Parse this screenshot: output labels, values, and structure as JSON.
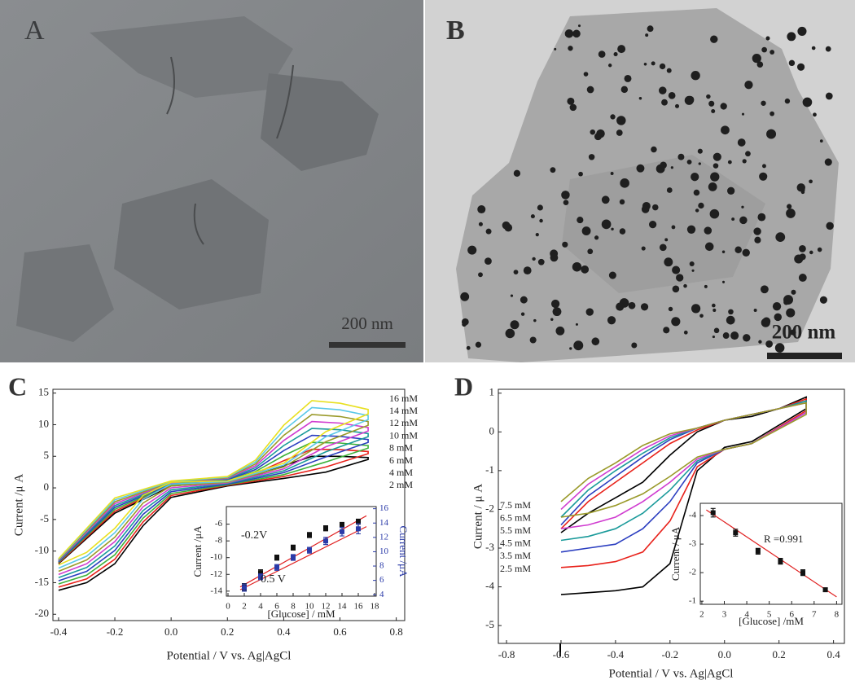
{
  "panels": {
    "a": {
      "label": "A",
      "scale_bar": "200 nm"
    },
    "b": {
      "label": "B",
      "scale_bar": "200 nm"
    }
  },
  "chart_data": [
    {
      "type": "line",
      "panel_label": "C",
      "x_label": "Potential / V vs. Ag|AgCl",
      "y_label": "Current /μ A",
      "x": [
        -0.4,
        -0.3,
        -0.2,
        -0.1,
        0,
        0.2,
        0.4,
        0.55,
        0.7,
        0.7,
        0.6,
        0.5,
        0.4,
        0.3,
        0.2,
        0,
        -0.2,
        -0.4
      ],
      "xlim": [
        -0.42,
        0.83
      ],
      "xticks": [
        -0.4,
        -0.2,
        {
          "value": 0,
          "label": "0.0"
        },
        0.2,
        0.4,
        0.6,
        0.8
      ],
      "ylim": [
        -21,
        15.6
      ],
      "yticks": [
        15,
        10,
        5,
        0,
        -5,
        -10,
        -15,
        -20
      ],
      "series": [
        {
          "color": "#000000",
          "values": [
            -16.2,
            -15,
            -12,
            -6,
            -1.5,
            0.3,
            1.5,
            2.5,
            4.5,
            4.8,
            5,
            5,
            3.5,
            2,
            1,
            0.3,
            -4,
            -12
          ]
        },
        {
          "color": "#e8221b",
          "values": [
            -15.7,
            -14.4,
            -11.3,
            -5.4,
            -1.2,
            0.4,
            1.8,
            3.3,
            5.4,
            5.75,
            6.05,
            6.1,
            4.3,
            2.3,
            1.1,
            0.4,
            -3.7,
            -11.9
          ]
        },
        {
          "color": "#3db23a",
          "values": [
            -15.2,
            -13.8,
            -10.6,
            -4.8,
            -0.9,
            0.5,
            2.1,
            4.1,
            6.3,
            6.7,
            7.1,
            7.2,
            5.1,
            2.6,
            1.2,
            0.5,
            -3.4,
            -11.8
          ]
        },
        {
          "color": "#2b3ec0",
          "values": [
            -14.7,
            -13.2,
            -9.9,
            -4.2,
            -0.6,
            0.6,
            2.4,
            4.9,
            7.2,
            7.65,
            8.15,
            8.3,
            5.9,
            2.9,
            1.3,
            0.6,
            -3.1,
            -11.7
          ]
        },
        {
          "color": "#1a9a9a",
          "values": [
            -14.2,
            -12.6,
            -9.2,
            -3.6,
            -0.3,
            0.7,
            2.7,
            5.7,
            8.1,
            8.6,
            9.2,
            9.4,
            6.7,
            3.2,
            1.4,
            0.7,
            -2.8,
            -11.6
          ]
        },
        {
          "color": "#d03cd0",
          "values": [
            -13.7,
            -12,
            -8.5,
            -3,
            0,
            0.8,
            3,
            6.5,
            9,
            9.55,
            10.25,
            10.5,
            7.5,
            3.5,
            1.5,
            0.8,
            -2.5,
            -11.5
          ]
        },
        {
          "color": "#9a9a2a",
          "values": [
            -13.2,
            -11.4,
            -7.8,
            -2.4,
            0.3,
            0.9,
            3.3,
            7.3,
            9.9,
            10.5,
            11.3,
            11.6,
            8.3,
            3.8,
            1.6,
            0.9,
            -2.2,
            -11.4
          ]
        },
        {
          "color": "#5ac8e8",
          "values": [
            -12.7,
            -10.8,
            -7.1,
            -1.8,
            0.6,
            1,
            3.6,
            8.1,
            10.8,
            11.45,
            12.35,
            12.7,
            9.1,
            4.1,
            1.7,
            1,
            -1.9,
            -11.3
          ]
        },
        {
          "color": "#e8e020",
          "values": [
            -12.2,
            -10.2,
            -6.4,
            -1.2,
            0.9,
            1.1,
            3.9,
            8.9,
            11.7,
            12.4,
            13.4,
            13.8,
            9.9,
            4.4,
            1.8,
            1.1,
            -1.6,
            -11.2
          ]
        }
      ],
      "annotations": [
        "16 mM",
        "14 mM",
        "12 mM",
        "10 mM",
        "8  mM",
        "6  mM",
        "4  mM",
        "2  mM"
      ]
    },
    {
      "type": "scatter",
      "x_label": "[Glucose] / mM",
      "y_label": "Current /μA",
      "y2_label": "Current /μA",
      "xlim": [
        -0.2,
        18.2
      ],
      "xticks": [
        0,
        2,
        4,
        6,
        8,
        10,
        12,
        14,
        16,
        18
      ],
      "ylim": [
        -14.6,
        -3.9
      ],
      "yticks": [
        -6,
        -8,
        -10,
        -12,
        -14
      ],
      "y2lim": [
        3.8,
        16.3
      ],
      "y2ticks": [
        4,
        6,
        8,
        10,
        12,
        14,
        16
      ],
      "series": [
        {
          "name": "-0.2V",
          "color": "#111111",
          "x": [
            2,
            4,
            6,
            8,
            10,
            12,
            14,
            16
          ],
          "values": [
            -13.5,
            -11.8,
            -10,
            -8.8,
            -7.3,
            -6.5,
            -6.1,
            -5.7
          ],
          "errors": [
            0.4,
            0.35,
            0.3,
            0.3,
            0.3,
            0.3,
            0.3,
            0.3
          ]
        },
        {
          "name": "0.5 V",
          "color": "#2a3aa8",
          "axis": "y2",
          "x": [
            2,
            4,
            6,
            8,
            10,
            12,
            14,
            16
          ],
          "values": [
            5,
            6.5,
            7.8,
            9.2,
            10.2,
            11.5,
            12.8,
            13.2
          ],
          "errors": [
            0.5,
            0.4,
            0.4,
            0.4,
            0.4,
            0.5,
            0.6,
            0.7
          ]
        }
      ],
      "fits": [
        {
          "color": "#e02020",
          "x": [
            1.5,
            17
          ],
          "values": [
            -13.5,
            -5
          ]
        },
        {
          "color": "#e02020",
          "axis": "y2",
          "x": [
            1.5,
            17
          ],
          "values": [
            4.7,
            13.5
          ]
        }
      ]
    },
    {
      "type": "line",
      "panel_label": "D",
      "x_label": "Potential / V vs. Ag|AgCl",
      "y_label": "Current / μ A",
      "x": [
        -0.6,
        -0.5,
        -0.4,
        -0.3,
        -0.2,
        -0.1,
        0,
        0.1,
        0.3,
        0.3,
        0.2,
        0.1,
        0,
        -0.1,
        -0.2,
        -0.3,
        -0.4,
        -0.5,
        -0.6
      ],
      "xlim": [
        -0.83,
        0.44
      ],
      "xticks": [
        -0.8,
        -0.6,
        -0.4,
        -0.2,
        {
          "value": 0,
          "label": "0.0"
        },
        0.2,
        0.4
      ],
      "ylim": [
        -5.46,
        1.1
      ],
      "yticks": [
        1,
        0,
        -1,
        -2,
        -3,
        -4,
        -5
      ],
      "series": [
        {
          "color": "#000000",
          "values": [
            -4.2,
            -4.15,
            -4.1,
            -4,
            -3.4,
            -1,
            -0.4,
            -0.25,
            0.6,
            0.9,
            0.6,
            0.4,
            0.3,
            0,
            -0.6,
            -1.3,
            -1.7,
            -2.1,
            -2.6
          ]
        },
        {
          "color": "#e8221b",
          "values": [
            -3.5,
            -3.45,
            -3.35,
            -3.1,
            -2.3,
            -0.9,
            -0.45,
            -0.3,
            0.55,
            0.85,
            0.6,
            0.45,
            0.3,
            0.05,
            -0.3,
            -0.8,
            -1.3,
            -1.8,
            -2.5
          ]
        },
        {
          "color": "#2b3ec0",
          "values": [
            -3.1,
            -3,
            -2.9,
            -2.5,
            -1.8,
            -0.8,
            -0.45,
            -0.3,
            0.5,
            0.8,
            0.6,
            0.45,
            0.3,
            0.1,
            -0.2,
            -0.65,
            -1.15,
            -1.65,
            -2.4
          ]
        },
        {
          "color": "#1a9a9a",
          "values": [
            -2.8,
            -2.7,
            -2.5,
            -2.1,
            -1.5,
            -0.75,
            -0.45,
            -0.3,
            0.5,
            0.8,
            0.6,
            0.45,
            0.3,
            0.1,
            -0.15,
            -0.55,
            -1,
            -1.5,
            -2.2
          ]
        },
        {
          "color": "#d03cd0",
          "values": [
            -2.5,
            -2.4,
            -2.2,
            -1.8,
            -1.3,
            -0.7,
            -0.45,
            -0.3,
            0.5,
            0.75,
            0.6,
            0.45,
            0.3,
            0.1,
            -0.1,
            -0.45,
            -0.9,
            -1.35,
            -2
          ]
        },
        {
          "color": "#9a9a2a",
          "values": [
            -2.2,
            -2.1,
            -1.9,
            -1.6,
            -1.15,
            -0.65,
            -0.45,
            -0.3,
            0.45,
            0.75,
            0.6,
            0.45,
            0.3,
            0.1,
            -0.05,
            -0.35,
            -0.8,
            -1.2,
            -1.8
          ]
        }
      ],
      "annotations": [
        "7.5 mM",
        "6.5 mM",
        "5.5 mM",
        "4.5 mM",
        "3.5 mM",
        "2.5 mM"
      ]
    },
    {
      "type": "scatter",
      "x_label": "[Glucose] /mM",
      "y_label": "Current / μA",
      "xlim": [
        1.93,
        8.24
      ],
      "xticks": [
        2,
        3,
        4,
        5,
        6,
        7,
        8
      ],
      "ylim": [
        -0.89,
        -4.43
      ],
      "yticks": [
        -4,
        -3,
        -2,
        -1
      ],
      "series": [
        {
          "color": "#111111",
          "x": [
            2.5,
            3.5,
            4.5,
            5.5,
            6.5,
            7.5
          ],
          "values": [
            -4.1,
            -3.4,
            -2.75,
            -2.4,
            -2,
            -1.4
          ],
          "errors": [
            0.15,
            0.12,
            0.1,
            0.1,
            0.1,
            0.06
          ]
        }
      ],
      "fits": [
        {
          "color": "#e02020",
          "x": [
            2.2,
            8
          ],
          "values": [
            -4.2,
            -1.15
          ]
        }
      ],
      "annotations": [
        "R =0.991"
      ]
    }
  ]
}
